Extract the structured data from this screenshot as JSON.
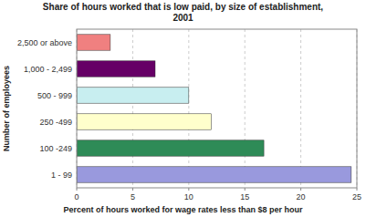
{
  "chart_data": {
    "type": "bar",
    "orientation": "horizontal",
    "title": "Share of hours worked that is low paid, by size of establishment,\n2001",
    "categories": [
      "1 - 99",
      "100 -249",
      "250 -499",
      "500 - 999",
      "1,000 - 2,499",
      "2,500 or above"
    ],
    "values": [
      24.5,
      16.7,
      12.0,
      10.0,
      7.0,
      3.0
    ],
    "colors": [
      "#9999DD",
      "#2E8B57",
      "#FFFFCC",
      "#C8EEF0",
      "#660066",
      "#F08080"
    ],
    "xlabel": "Percent of hours worked for wage rates less than $8 per hour",
    "ylabel": "Number of employees",
    "xlim": [
      0,
      25
    ],
    "xticks": [
      0,
      5,
      10,
      15,
      20,
      25
    ],
    "grid": true
  }
}
